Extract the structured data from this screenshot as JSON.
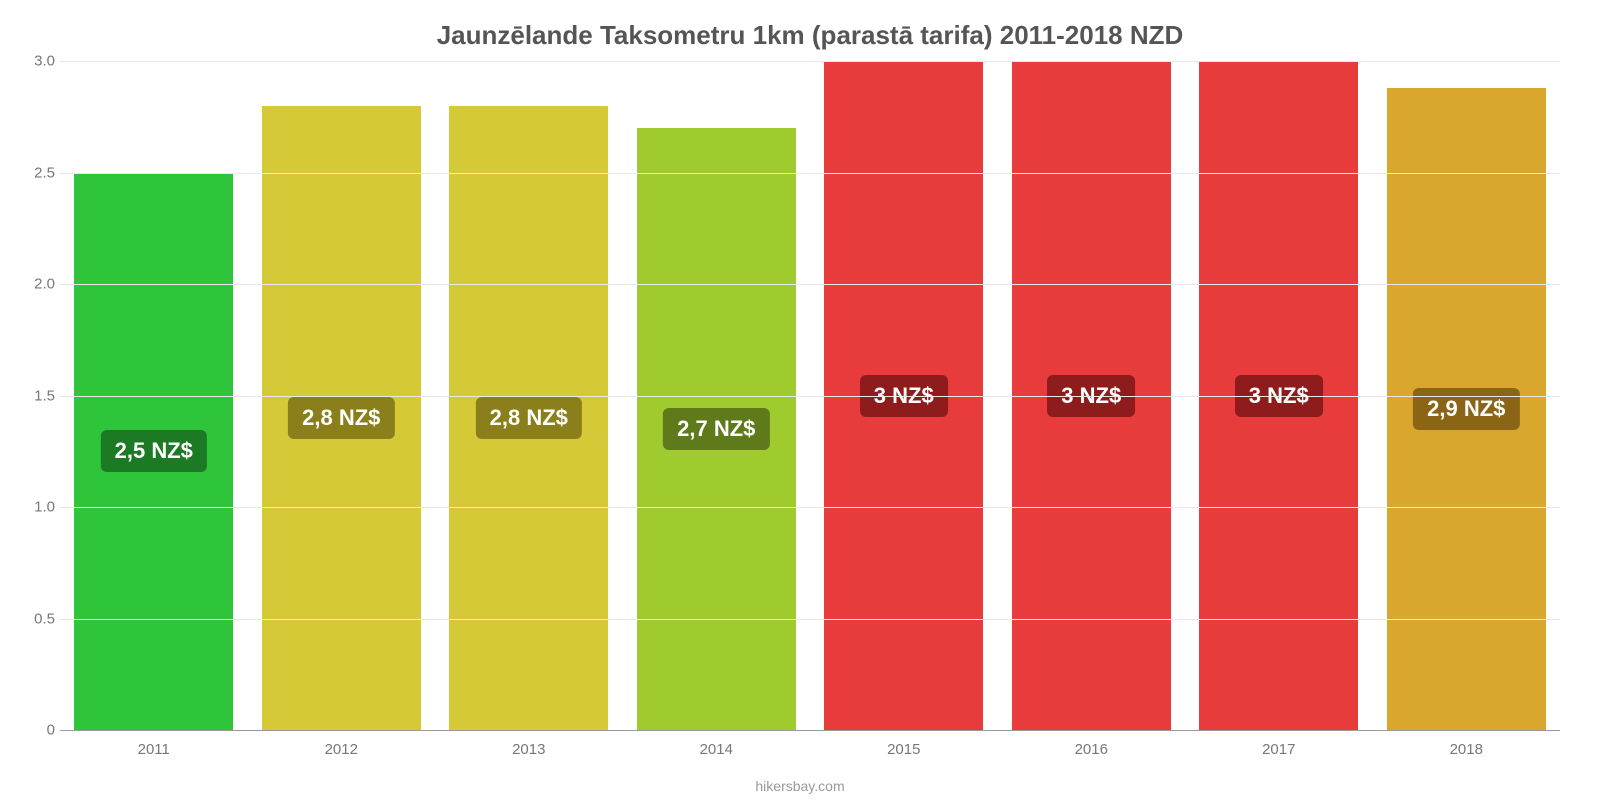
{
  "chart": {
    "type": "bar",
    "title": "Jaunzēlande Taksometru 1km (parastā tarifa) 2011-2018 NZD",
    "title_fontsize": 26,
    "title_color": "#555555",
    "categories": [
      "2011",
      "2012",
      "2013",
      "2014",
      "2015",
      "2016",
      "2017",
      "2018"
    ],
    "values": [
      2.5,
      2.8,
      2.8,
      2.7,
      3.0,
      3.0,
      3.0,
      2.88
    ],
    "value_labels": [
      "2,5 NZ$",
      "2,8 NZ$",
      "2,8 NZ$",
      "2,7 NZ$",
      "3 NZ$",
      "3 NZ$",
      "3 NZ$",
      "2,9 NZ$"
    ],
    "bar_colors": [
      "#2ec53a",
      "#d6c937",
      "#d6c937",
      "#a0cb2f",
      "#e83c3c",
      "#e83c3c",
      "#e83c3c",
      "#d9a62e"
    ],
    "label_bg_colors": [
      "#1b7a23",
      "#8a7f1a",
      "#8a7f1a",
      "#5f7a1a",
      "#8f1c1c",
      "#8f1c1c",
      "#8f1c1c",
      "#8a6516"
    ],
    "label_fontsize": 22,
    "ylim": [
      0,
      3.0
    ],
    "yticks": [
      0,
      0.5,
      1.0,
      1.5,
      2.0,
      2.5,
      3.0
    ],
    "ytick_labels": [
      "0",
      "0.5",
      "1.0",
      "1.5",
      "2.0",
      "2.5",
      "3.0"
    ],
    "tick_fontsize": 15,
    "tick_color": "#777777",
    "background_color": "#ffffff",
    "grid_color": "#e8e8e8",
    "axis_line_color": "#999999",
    "bar_width_percent": 85,
    "attribution": "hikersbay.com",
    "attribution_fontsize": 14,
    "attribution_color": "#999999"
  }
}
